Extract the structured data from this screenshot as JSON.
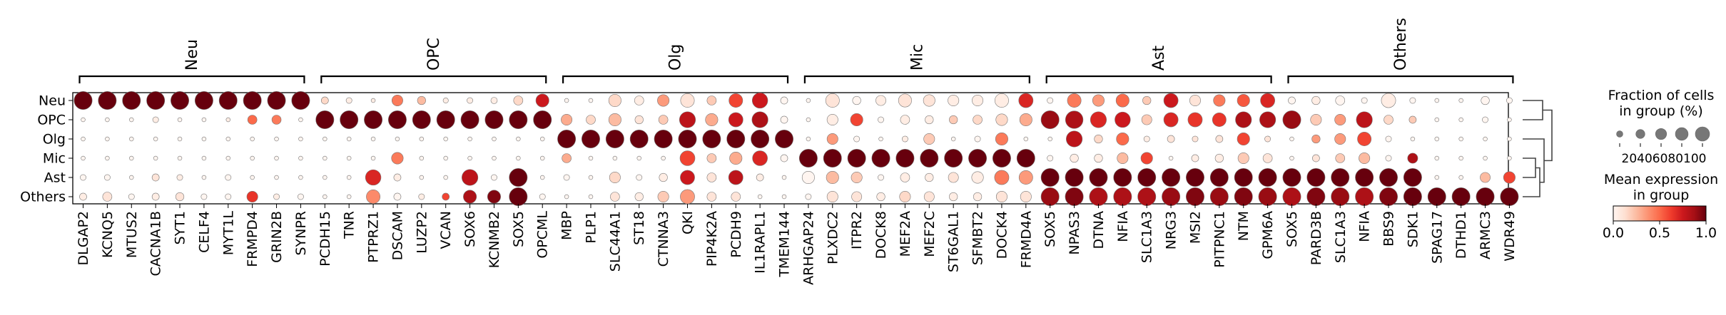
{
  "chart_data": {
    "type": "dotplot",
    "groups": [
      "Neu",
      "OPC",
      "Olg",
      "Mic",
      "Ast",
      "Others"
    ],
    "gene_groups": [
      {
        "name": "Neu",
        "genes": [
          "DLGAP2",
          "KCNQ5",
          "MTUS2",
          "CACNA1B",
          "SYT1",
          "CELF4",
          "MYT1L",
          "FRMPD4",
          "GRIN2B",
          "SYNPR"
        ]
      },
      {
        "name": "OPC",
        "genes": [
          "PCDH15",
          "TNR",
          "PTPRZ1",
          "DSCAM",
          "LUZP2",
          "VCAN",
          "SOX6",
          "KCNMB2",
          "SOX5",
          "OPCML"
        ]
      },
      {
        "name": "Olg",
        "genes": [
          "MBP",
          "PLP1",
          "SLC44A1",
          "ST18",
          "CTNNA3",
          "QKI",
          "PIP4K2A",
          "PCDH9",
          "IL1RAPL1",
          "TMEM144"
        ]
      },
      {
        "name": "Mic",
        "genes": [
          "ARHGAP24",
          "PLXDC2",
          "ITPR2",
          "DOCK8",
          "MEF2A",
          "MEF2C",
          "ST6GAL1",
          "SFMBT2",
          "DOCK4",
          "FRMD4A"
        ]
      },
      {
        "name": "Ast",
        "genes": [
          "SOX5",
          "NPAS3",
          "DTNA",
          "NFIA",
          "SLC1A3",
          "NRG3",
          "MSI2",
          "PITPNC1",
          "NTM",
          "GPM6A"
        ]
      },
      {
        "name": "Others",
        "genes": [
          "SOX5",
          "PARD3B",
          "SLC1A3",
          "NFIA",
          "BBS9",
          "SDK1",
          "SPAG17",
          "DTHD1",
          "ARMC3",
          "WDR49"
        ]
      }
    ],
    "fraction_pct": [
      [
        95,
        95,
        95,
        95,
        95,
        95,
        95,
        95,
        95,
        95,
        15,
        10,
        5,
        35,
        20,
        8,
        10,
        12,
        25,
        50,
        5,
        5,
        45,
        25,
        40,
        55,
        25,
        55,
        70,
        15,
        5,
        55,
        20,
        30,
        50,
        40,
        35,
        35,
        55,
        60,
        10,
        55,
        40,
        50,
        20,
        60,
        35,
        40,
        45,
        60,
        15,
        20,
        25,
        10,
        60,
        10,
        5,
        5,
        20,
        10
      ],
      [
        5,
        5,
        5,
        10,
        5,
        5,
        5,
        25,
        25,
        5,
        95,
        95,
        95,
        95,
        95,
        95,
        95,
        95,
        95,
        95,
        35,
        25,
        45,
        20,
        25,
        75,
        45,
        60,
        75,
        15,
        5,
        35,
        45,
        10,
        25,
        20,
        20,
        25,
        40,
        45,
        95,
        90,
        75,
        70,
        30,
        60,
        60,
        55,
        75,
        75,
        95,
        35,
        35,
        75,
        25,
        15,
        5,
        5,
        10,
        5
      ],
      [
        5,
        5,
        5,
        5,
        5,
        5,
        5,
        5,
        5,
        5,
        5,
        5,
        5,
        5,
        5,
        5,
        5,
        5,
        5,
        5,
        95,
        95,
        95,
        95,
        95,
        95,
        95,
        95,
        95,
        95,
        5,
        35,
        10,
        5,
        10,
        35,
        5,
        10,
        45,
        5,
        5,
        75,
        20,
        45,
        10,
        15,
        10,
        15,
        45,
        10,
        5,
        20,
        35,
        55,
        10,
        5,
        5,
        5,
        5,
        5
      ],
      [
        5,
        5,
        5,
        5,
        5,
        5,
        5,
        5,
        5,
        5,
        5,
        5,
        5,
        40,
        5,
        5,
        5,
        5,
        5,
        5,
        25,
        5,
        5,
        5,
        5,
        65,
        25,
        45,
        65,
        15,
        95,
        95,
        95,
        95,
        95,
        95,
        95,
        95,
        95,
        95,
        10,
        20,
        20,
        35,
        40,
        5,
        15,
        20,
        35,
        25,
        5,
        15,
        25,
        35,
        10,
        30,
        5,
        5,
        5,
        5
      ],
      [
        10,
        10,
        5,
        15,
        10,
        5,
        10,
        5,
        5,
        5,
        5,
        5,
        70,
        15,
        5,
        5,
        75,
        10,
        95,
        5,
        10,
        5,
        35,
        10,
        20,
        60,
        25,
        60,
        15,
        5,
        45,
        45,
        35,
        10,
        25,
        20,
        30,
        40,
        60,
        55,
        95,
        95,
        95,
        95,
        95,
        95,
        95,
        95,
        95,
        95,
        95,
        95,
        95,
        95,
        95,
        95,
        5,
        5,
        30,
        40
      ],
      [
        15,
        25,
        10,
        15,
        20,
        10,
        10,
        35,
        10,
        10,
        5,
        5,
        55,
        15,
        10,
        15,
        50,
        50,
        95,
        10,
        5,
        5,
        25,
        20,
        35,
        60,
        25,
        25,
        5,
        5,
        10,
        35,
        30,
        20,
        35,
        30,
        20,
        20,
        35,
        35,
        95,
        95,
        95,
        95,
        95,
        95,
        95,
        95,
        95,
        95,
        95,
        95,
        95,
        95,
        95,
        95,
        95,
        95,
        95,
        95
      ]
    ],
    "mean_expression": [
      [
        1.0,
        1.0,
        1.0,
        1.0,
        1.0,
        1.0,
        1.0,
        1.0,
        1.0,
        1.0,
        0.15,
        0.05,
        0.05,
        0.45,
        0.25,
        0.05,
        0.05,
        0.05,
        0.15,
        0.75,
        0.0,
        0.0,
        0.15,
        0.05,
        0.35,
        0.1,
        0.2,
        0.6,
        0.75,
        0.0,
        0.0,
        0.1,
        0.0,
        0.05,
        0.1,
        0.1,
        0.05,
        0.05,
        0.05,
        0.7,
        0.0,
        0.45,
        0.35,
        0.5,
        0.2,
        0.75,
        0.1,
        0.45,
        0.55,
        0.7,
        0.0,
        0.05,
        0.0,
        0.0,
        0.05,
        0.0,
        0.0,
        0.0,
        0.0,
        0.0
      ],
      [
        0.0,
        0.0,
        0.0,
        0.05,
        0.0,
        0.0,
        0.05,
        0.5,
        0.45,
        0.0,
        1.0,
        1.0,
        1.0,
        1.0,
        1.0,
        1.0,
        1.0,
        1.0,
        1.0,
        1.0,
        0.3,
        0.15,
        0.25,
        0.1,
        0.2,
        0.8,
        0.3,
        0.75,
        0.85,
        0.0,
        0.0,
        0.05,
        0.6,
        0.0,
        0.05,
        0.05,
        0.2,
        0.15,
        0.15,
        0.3,
        0.9,
        0.85,
        0.7,
        0.75,
        0.2,
        0.7,
        0.65,
        0.65,
        0.85,
        0.85,
        0.9,
        0.2,
        0.35,
        0.8,
        0.15,
        0.2,
        0.0,
        0.0,
        0.0,
        0.0
      ],
      [
        0.0,
        0.0,
        0.0,
        0.0,
        0.0,
        0.0,
        0.0,
        0.0,
        0.0,
        0.0,
        0.0,
        0.0,
        0.0,
        0.0,
        0.0,
        0.0,
        0.0,
        0.0,
        0.0,
        0.0,
        1.0,
        1.0,
        1.0,
        1.0,
        1.0,
        1.0,
        1.0,
        1.0,
        1.0,
        1.0,
        0.0,
        0.35,
        0.0,
        0.0,
        0.05,
        0.2,
        0.0,
        0.0,
        0.45,
        0.0,
        0.0,
        0.8,
        0.15,
        0.5,
        0.05,
        0.1,
        0.1,
        0.1,
        0.6,
        0.1,
        0.0,
        0.35,
        0.35,
        0.6,
        0.0,
        0.0,
        0.0,
        0.0,
        0.0,
        0.0
      ],
      [
        0.0,
        0.0,
        0.0,
        0.0,
        0.0,
        0.0,
        0.0,
        0.0,
        0.0,
        0.0,
        0.0,
        0.0,
        0.0,
        0.45,
        0.0,
        0.0,
        0.0,
        0.0,
        0.0,
        0.0,
        0.3,
        0.0,
        0.0,
        0.0,
        0.0,
        0.6,
        0.2,
        0.3,
        0.7,
        0.0,
        1.0,
        1.0,
        1.0,
        1.0,
        1.0,
        1.0,
        1.0,
        1.0,
        1.0,
        1.0,
        0.0,
        0.05,
        0.05,
        0.25,
        0.6,
        0.0,
        0.05,
        0.05,
        0.2,
        0.1,
        0.0,
        0.1,
        0.2,
        0.25,
        0.0,
        0.85,
        0.0,
        0.0,
        0.0,
        0.0
      ],
      [
        0.0,
        0.0,
        0.0,
        0.1,
        0.05,
        0.0,
        0.0,
        0.0,
        0.0,
        0.0,
        0.0,
        0.0,
        0.7,
        0.05,
        0.0,
        0.0,
        0.8,
        0.0,
        1.0,
        0.0,
        0.0,
        0.0,
        0.15,
        0.0,
        0.05,
        0.75,
        0.1,
        0.8,
        0.05,
        0.0,
        0.0,
        0.25,
        0.2,
        0.0,
        0.05,
        0.05,
        0.1,
        0.05,
        0.45,
        0.35,
        1.0,
        1.0,
        1.0,
        1.0,
        1.0,
        1.0,
        1.0,
        1.0,
        1.0,
        1.0,
        1.0,
        1.0,
        1.0,
        1.0,
        1.0,
        1.0,
        0.0,
        0.0,
        0.25,
        0.6
      ],
      [
        0.05,
        0.1,
        0.0,
        0.05,
        0.1,
        0.0,
        0.0,
        0.65,
        0.05,
        0.0,
        0.0,
        0.0,
        0.4,
        0.0,
        0.05,
        0.6,
        0.85,
        0.95,
        1.0,
        0.0,
        0.0,
        0.0,
        0.1,
        0.05,
        0.2,
        0.35,
        0.1,
        0.1,
        0.0,
        0.0,
        0.0,
        0.1,
        0.1,
        0.05,
        0.15,
        0.1,
        0.05,
        0.05,
        0.1,
        0.1,
        0.9,
        0.95,
        0.85,
        0.85,
        0.85,
        0.9,
        0.95,
        0.9,
        0.95,
        0.9,
        0.85,
        0.95,
        0.9,
        0.85,
        0.95,
        1.0,
        1.0,
        1.0,
        1.0,
        1.0
      ]
    ],
    "colorbar": {
      "title": "Mean expression\nin group",
      "ticks": [
        "0.0",
        "0.5",
        "1.0"
      ],
      "range": [
        0,
        1
      ],
      "colormap": "Reds"
    },
    "size_legend": {
      "title": "Fraction of cells\nin group (%)",
      "values": [
        20,
        40,
        60,
        80,
        100
      ],
      "label_text": "20406080100"
    },
    "dendrogram": true,
    "colors": {
      "low": "#fff5f0",
      "high": "#67000d",
      "edge": "#666666"
    }
  }
}
